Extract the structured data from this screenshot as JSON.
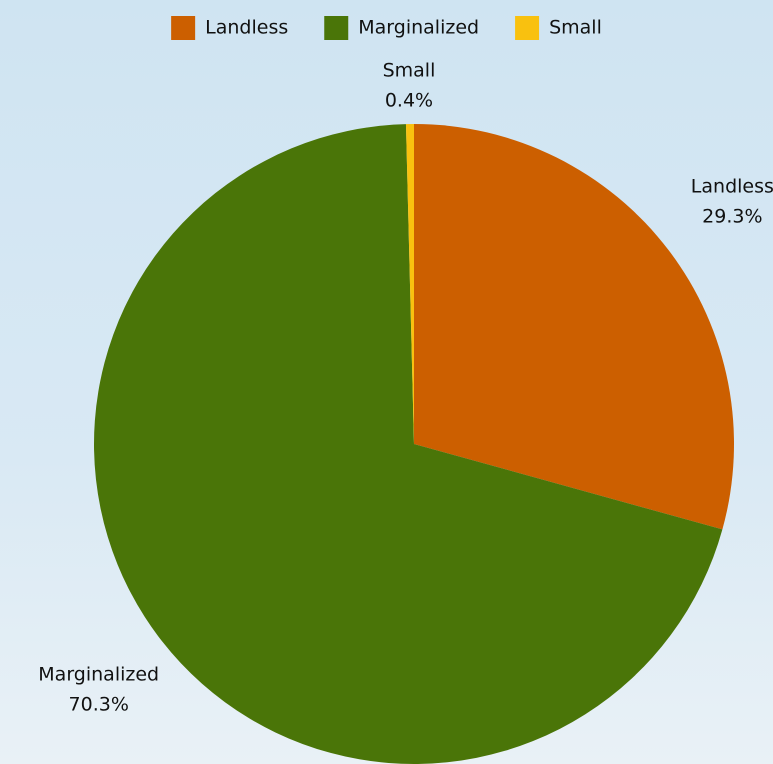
{
  "chart_data": {
    "type": "pie",
    "categories": [
      "Landless",
      "Marginalized",
      "Small"
    ],
    "values": [
      29.3,
      70.3,
      0.4
    ],
    "value_labels": [
      "29.3%",
      "70.3%",
      "0.4%"
    ],
    "colors": [
      "#cc5f00",
      "#4a7508",
      "#f9c10f"
    ],
    "legend": "top"
  }
}
